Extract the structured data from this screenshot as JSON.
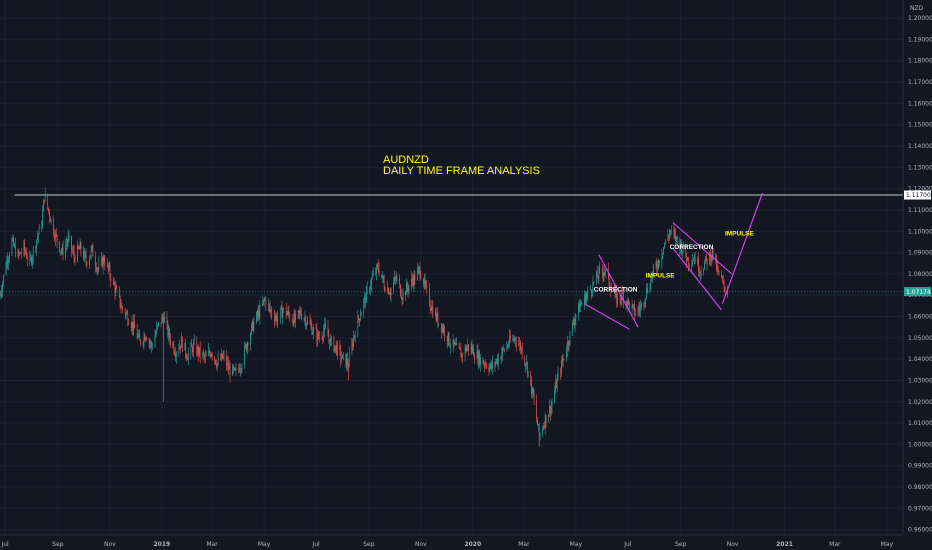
{
  "chart_data": {
    "type": "candlestick",
    "symbol": "AUDNZD",
    "title_lines": [
      "AUDNZD",
      "DAILY TIME FRAME ANALYSIS"
    ],
    "currency_label": "NZD",
    "ylim": [
      0.9575,
      1.2085
    ],
    "y_ticks": [
      0.96,
      0.97,
      0.98,
      0.99,
      1.0,
      1.01,
      1.02,
      1.03,
      1.04,
      1.05,
      1.06,
      1.07,
      1.08,
      1.09,
      1.1,
      1.11,
      1.12,
      1.13,
      1.14,
      1.15,
      1.16,
      1.17,
      1.18,
      1.19,
      1.2
    ],
    "x_range": [
      "2018-06-25",
      "2021-05-20"
    ],
    "x_ticks": [
      {
        "label": "Jul",
        "date": "2018-07-01",
        "bold": false
      },
      {
        "label": "Sep",
        "date": "2018-09-01",
        "bold": false
      },
      {
        "label": "Nov",
        "date": "2018-11-01",
        "bold": false
      },
      {
        "label": "2019",
        "date": "2019-01-01",
        "bold": true
      },
      {
        "label": "Mar",
        "date": "2019-03-01",
        "bold": false
      },
      {
        "label": "May",
        "date": "2019-05-01",
        "bold": false
      },
      {
        "label": "Jul",
        "date": "2019-07-01",
        "bold": false
      },
      {
        "label": "Sep",
        "date": "2019-09-01",
        "bold": false
      },
      {
        "label": "Nov",
        "date": "2019-11-01",
        "bold": false
      },
      {
        "label": "2020",
        "date": "2020-01-01",
        "bold": true
      },
      {
        "label": "Mar",
        "date": "2020-03-01",
        "bold": false
      },
      {
        "label": "May",
        "date": "2020-05-01",
        "bold": false
      },
      {
        "label": "Jul",
        "date": "2020-07-01",
        "bold": false
      },
      {
        "label": "Sep",
        "date": "2020-09-01",
        "bold": false
      },
      {
        "label": "Nov",
        "date": "2020-11-01",
        "bold": false
      },
      {
        "label": "2021",
        "date": "2021-01-01",
        "bold": true
      },
      {
        "label": "Mar",
        "date": "2021-03-01",
        "bold": false
      },
      {
        "label": "May",
        "date": "2021-05-01",
        "bold": false
      }
    ],
    "price_path": [
      [
        "2018-06-25",
        1.07
      ],
      [
        "2018-07-02",
        1.085
      ],
      [
        "2018-07-09",
        1.095
      ],
      [
        "2018-07-16",
        1.088
      ],
      [
        "2018-07-23",
        1.092
      ],
      [
        "2018-07-30",
        1.085
      ],
      [
        "2018-08-06",
        1.095
      ],
      [
        "2018-08-13",
        1.104
      ],
      [
        "2018-08-16",
        1.117
      ],
      [
        "2018-08-22",
        1.108
      ],
      [
        "2018-08-29",
        1.098
      ],
      [
        "2018-09-06",
        1.09
      ],
      [
        "2018-09-13",
        1.096
      ],
      [
        "2018-09-20",
        1.088
      ],
      [
        "2018-09-27",
        1.092
      ],
      [
        "2018-10-04",
        1.086
      ],
      [
        "2018-10-11",
        1.091
      ],
      [
        "2018-10-18",
        1.082
      ],
      [
        "2018-10-25",
        1.087
      ],
      [
        "2018-11-01",
        1.08
      ],
      [
        "2018-11-08",
        1.072
      ],
      [
        "2018-11-15",
        1.064
      ],
      [
        "2018-11-22",
        1.06
      ],
      [
        "2018-11-29",
        1.055
      ],
      [
        "2018-12-06",
        1.048
      ],
      [
        "2018-12-13",
        1.052
      ],
      [
        "2018-12-20",
        1.046
      ],
      [
        "2018-12-27",
        1.055
      ],
      [
        "2019-01-03",
        1.06
      ],
      [
        "2019-01-10",
        1.05
      ],
      [
        "2019-01-17",
        1.044
      ],
      [
        "2019-01-24",
        1.048
      ],
      [
        "2019-01-31",
        1.042
      ],
      [
        "2019-02-07",
        1.046
      ],
      [
        "2019-02-14",
        1.043
      ],
      [
        "2019-02-21",
        1.04
      ],
      [
        "2019-02-28",
        1.044
      ],
      [
        "2019-03-07",
        1.038
      ],
      [
        "2019-03-14",
        1.041
      ],
      [
        "2019-03-21",
        1.035
      ],
      [
        "2019-03-28",
        1.033
      ],
      [
        "2019-04-04",
        1.038
      ],
      [
        "2019-04-11",
        1.048
      ],
      [
        "2019-04-18",
        1.056
      ],
      [
        "2019-04-25",
        1.062
      ],
      [
        "2019-05-02",
        1.068
      ],
      [
        "2019-05-09",
        1.062
      ],
      [
        "2019-05-16",
        1.059
      ],
      [
        "2019-05-23",
        1.063
      ],
      [
        "2019-05-30",
        1.061
      ],
      [
        "2019-06-06",
        1.058
      ],
      [
        "2019-06-13",
        1.062
      ],
      [
        "2019-06-20",
        1.058
      ],
      [
        "2019-06-27",
        1.054
      ],
      [
        "2019-07-04",
        1.05
      ],
      [
        "2019-07-11",
        1.054
      ],
      [
        "2019-07-18",
        1.048
      ],
      [
        "2019-07-25",
        1.045
      ],
      [
        "2019-08-01",
        1.04
      ],
      [
        "2019-08-08",
        1.038
      ],
      [
        "2019-08-15",
        1.052
      ],
      [
        "2019-08-22",
        1.062
      ],
      [
        "2019-08-29",
        1.07
      ],
      [
        "2019-09-05",
        1.078
      ],
      [
        "2019-09-12",
        1.083
      ],
      [
        "2019-09-19",
        1.075
      ],
      [
        "2019-09-26",
        1.072
      ],
      [
        "2019-10-03",
        1.078
      ],
      [
        "2019-10-10",
        1.07
      ],
      [
        "2019-10-17",
        1.074
      ],
      [
        "2019-10-24",
        1.078
      ],
      [
        "2019-10-31",
        1.082
      ],
      [
        "2019-11-07",
        1.072
      ],
      [
        "2019-11-14",
        1.064
      ],
      [
        "2019-11-21",
        1.058
      ],
      [
        "2019-11-28",
        1.054
      ],
      [
        "2019-12-05",
        1.048
      ],
      [
        "2019-12-12",
        1.045
      ],
      [
        "2019-12-19",
        1.042
      ],
      [
        "2019-12-26",
        1.046
      ],
      [
        "2020-01-02",
        1.044
      ],
      [
        "2020-01-09",
        1.04
      ],
      [
        "2020-01-16",
        1.038
      ],
      [
        "2020-01-23",
        1.036
      ],
      [
        "2020-01-30",
        1.04
      ],
      [
        "2020-02-06",
        1.044
      ],
      [
        "2020-02-13",
        1.048
      ],
      [
        "2020-02-20",
        1.05
      ],
      [
        "2020-02-27",
        1.045
      ],
      [
        "2020-03-05",
        1.036
      ],
      [
        "2020-03-12",
        1.022
      ],
      [
        "2020-03-19",
        1.004
      ],
      [
        "2020-03-26",
        1.012
      ],
      [
        "2020-04-02",
        1.018
      ],
      [
        "2020-04-09",
        1.03
      ],
      [
        "2020-04-16",
        1.04
      ],
      [
        "2020-04-23",
        1.05
      ],
      [
        "2020-04-30",
        1.06
      ],
      [
        "2020-05-07",
        1.066
      ],
      [
        "2020-05-14",
        1.07
      ],
      [
        "2020-05-21",
        1.075
      ],
      [
        "2020-05-28",
        1.08
      ],
      [
        "2020-06-04",
        1.082
      ],
      [
        "2020-06-11",
        1.074
      ],
      [
        "2020-06-18",
        1.068
      ],
      [
        "2020-06-25",
        1.07
      ],
      [
        "2020-07-02",
        1.066
      ],
      [
        "2020-07-09",
        1.062
      ],
      [
        "2020-07-16",
        1.064
      ],
      [
        "2020-07-23",
        1.072
      ],
      [
        "2020-07-30",
        1.08
      ],
      [
        "2020-08-06",
        1.086
      ],
      [
        "2020-08-13",
        1.094
      ],
      [
        "2020-08-20",
        1.1
      ],
      [
        "2020-08-27",
        1.096
      ],
      [
        "2020-09-03",
        1.092
      ],
      [
        "2020-09-10",
        1.086
      ],
      [
        "2020-09-17",
        1.088
      ],
      [
        "2020-09-24",
        1.082
      ],
      [
        "2020-10-01",
        1.086
      ],
      [
        "2020-10-08",
        1.09
      ],
      [
        "2020-10-15",
        1.08
      ],
      [
        "2020-10-22",
        1.074
      ],
      [
        "2020-10-26",
        1.0717
      ]
    ],
    "spikes": [
      {
        "date": "2019-01-03",
        "low": 1.02
      },
      {
        "date": "2019-08-08",
        "low": 1.03
      },
      {
        "date": "2020-03-19",
        "low": 0.999
      }
    ],
    "resistance": {
      "price": 1.117,
      "label": "1.11700"
    },
    "current": {
      "price": 1.0717,
      "label": "1.07174"
    },
    "annotations": [
      {
        "text": "CORRECTION",
        "date": "2020-05-22",
        "price": 1.0718,
        "color": "#ffffff"
      },
      {
        "text": "IMPULSE",
        "date": "2020-07-22",
        "price": 1.0782,
        "color": "#ffff00"
      },
      {
        "text": "CORRECTION",
        "date": "2020-08-19",
        "price": 1.0917,
        "color": "#ffffff"
      },
      {
        "text": "IMPULSE",
        "date": "2020-10-23",
        "price": 1.098,
        "color": "#ffff00"
      }
    ],
    "drawings": [
      {
        "from": [
          "2020-05-28",
          1.089
        ],
        "to": [
          "2020-07-13",
          1.055
        ]
      },
      {
        "from": [
          "2020-05-11",
          1.066
        ],
        "to": [
          "2020-07-03",
          1.054
        ]
      },
      {
        "from": [
          "2020-08-23",
          1.104
        ],
        "to": [
          "2020-10-31",
          1.08
        ]
      },
      {
        "from": [
          "2020-08-23",
          1.092
        ],
        "to": [
          "2020-10-19",
          1.063
        ]
      },
      {
        "from": [
          "2020-10-20",
          1.066
        ],
        "to": [
          "2020-12-06",
          1.118
        ]
      }
    ],
    "colors": {
      "background": "#131722",
      "up": "#26a69a",
      "down": "#ef5350",
      "drawing": "#e040fb",
      "title": "#ffff00",
      "axis_text": "#b2b5be",
      "resistance": "#ffffff",
      "current": "#26a69a"
    }
  }
}
